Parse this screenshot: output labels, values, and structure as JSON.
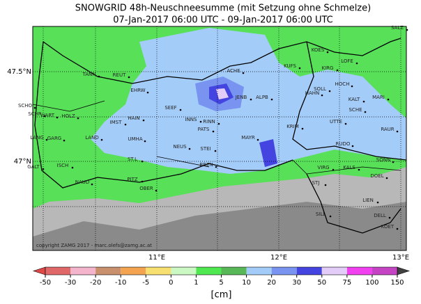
{
  "title": "SNOWGRID 48h-Neuschneesumme (mit Setzung ohne Schmelze)",
  "subtitle": "07-Jan-2017 06:00 UTC - 09-Jan-2017 06:00 UTC",
  "lat_labels": [
    "47.5°N",
    "47°N"
  ],
  "lon_labels": [
    "11°E",
    "12°E",
    "13°E"
  ],
  "places": [
    "SALZ",
    "KOES",
    "KUFS",
    "KIRG",
    "LOFE",
    "TANN",
    "REUT",
    "ACHE",
    "EHRW",
    "SEEF",
    "JENB",
    "ALPB",
    "SOLL",
    "HAHN",
    "HOCH",
    "MARI",
    "KALT",
    "SCHE",
    "SCHO",
    "SCHR",
    "WART",
    "HOLZ",
    "IMST",
    "HAIN",
    "INNS",
    "RINN",
    "PATS",
    "KRIM",
    "UTTE",
    "RAUR",
    "LANG",
    "GARG",
    "LAND",
    "UMHA",
    "NEUS",
    "STEI",
    "MAYR",
    "RUDO",
    "SONN",
    "ST.L",
    "GALT",
    "ISCH",
    "BREN",
    "VIRG",
    "KALS",
    "DOEL",
    "NAUD",
    "PITZ",
    "OBER",
    "STJ",
    "LIEN",
    "SILL",
    "DELL",
    "KOET"
  ],
  "copyright": "copyright ZAMG 2017 - marc.olefs@zamg.ac.at",
  "colorbar": {
    "ticks": [
      -50,
      -30,
      -20,
      -10,
      -5,
      0,
      1,
      5,
      10,
      20,
      30,
      50,
      75,
      100,
      150
    ],
    "colors": [
      "#e06868",
      "#f4b4cc",
      "#c8906c",
      "#f4a450",
      "#f8e070",
      "#ccf8c4",
      "#50e850",
      "#58b858",
      "#a4ccf8",
      "#7894f0",
      "#4444e0",
      "#e4ccf8",
      "#f040f0",
      "#c444c4"
    ],
    "under_color": "#e04848",
    "over_color": "#404040",
    "unit": "[cm]"
  }
}
